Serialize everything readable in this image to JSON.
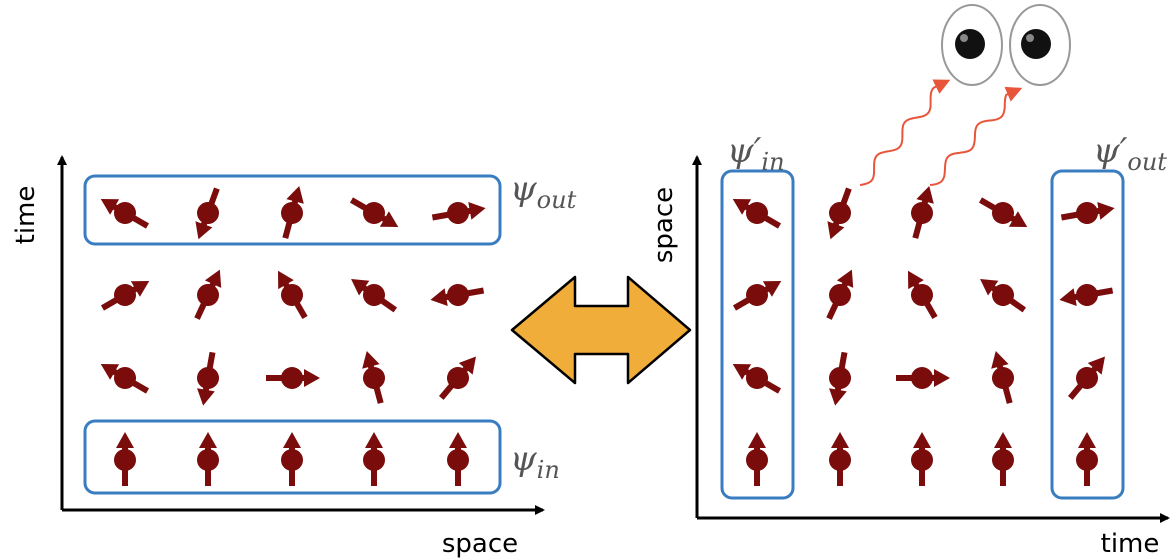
{
  "left": {
    "y_axis_label": "time",
    "x_axis_label": "space",
    "psi_out": {
      "symbol": "ψ",
      "subscript": "out"
    },
    "psi_in": {
      "symbol": "ψ",
      "subscript": "in"
    }
  },
  "right": {
    "y_axis_label": "space",
    "x_axis_label": "time",
    "psi_in": {
      "symbol": "ψ′",
      "subscript": "in"
    },
    "psi_out": {
      "symbol": "ψ′",
      "subscript": "out"
    }
  }
}
